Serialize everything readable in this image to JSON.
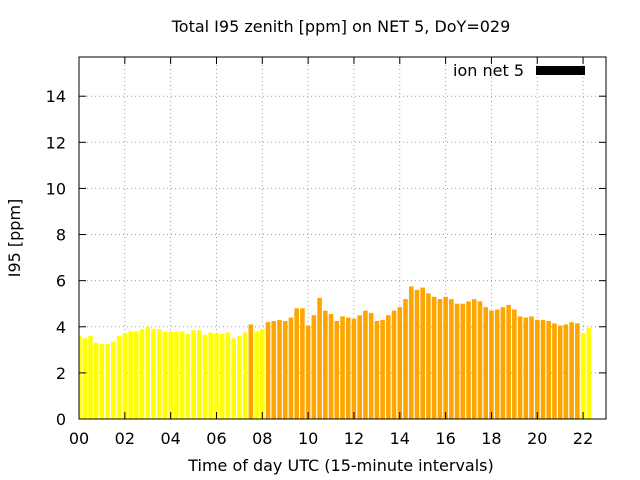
{
  "chart_data": {
    "type": "bar",
    "title": "Total I95 zenith [ppm] on NET 5, DoY=029",
    "xlabel": "Time of day UTC (15-minute intervals)",
    "ylabel": "I95 [ppm]",
    "xlim": [
      0,
      23
    ],
    "ylim": [
      0,
      15.7
    ],
    "grid": true,
    "legend_position": "top-right",
    "x_ticks": [
      0,
      2,
      4,
      6,
      8,
      10,
      12,
      14,
      16,
      18,
      20,
      22
    ],
    "x_tick_labels": [
      "00",
      "02",
      "04",
      "06",
      "08",
      "10",
      "12",
      "14",
      "16",
      "18",
      "20",
      "22"
    ],
    "y_ticks": [
      0,
      2,
      4,
      6,
      8,
      10,
      12,
      14
    ],
    "y_tick_labels": [
      "0",
      "2",
      "4",
      "6",
      "8",
      "10",
      "12",
      "14"
    ],
    "interval_hours": 0.25,
    "bar_width_hours": 0.2,
    "colors": {
      "low": "#ffff00",
      "high": "#ffa500",
      "frame": "#000000",
      "grid": "#a0a0a0"
    },
    "series": [
      {
        "name": "ion net 5",
        "legend_color": "#000000",
        "values": [
          3.6,
          3.5,
          3.6,
          3.3,
          3.25,
          3.25,
          3.35,
          3.6,
          3.7,
          3.8,
          3.8,
          3.9,
          4.0,
          3.9,
          3.9,
          3.8,
          3.8,
          3.8,
          3.8,
          3.7,
          3.85,
          3.85,
          3.65,
          3.75,
          3.7,
          3.7,
          3.75,
          3.5,
          3.6,
          3.75,
          4.1,
          3.8,
          3.9,
          4.2,
          4.25,
          4.3,
          4.25,
          4.4,
          4.8,
          4.8,
          4.05,
          4.5,
          5.25,
          4.7,
          4.55,
          4.25,
          4.45,
          4.4,
          4.35,
          4.5,
          4.7,
          4.6,
          4.25,
          4.3,
          4.5,
          4.7,
          4.85,
          5.2,
          5.75,
          5.6,
          5.7,
          5.45,
          5.3,
          5.2,
          5.3,
          5.2,
          5.0,
          5.0,
          5.1,
          5.2,
          5.1,
          4.85,
          4.7,
          4.75,
          4.85,
          4.95,
          4.75,
          4.45,
          4.4,
          4.45,
          4.3,
          4.3,
          4.25,
          4.15,
          4.05,
          4.1,
          4.2,
          4.15,
          3.7,
          3.95
        ],
        "colors": [
          "low",
          "low",
          "low",
          "low",
          "low",
          "low",
          "low",
          "low",
          "low",
          "low",
          "low",
          "low",
          "low",
          "low",
          "low",
          "low",
          "low",
          "low",
          "low",
          "low",
          "low",
          "low",
          "low",
          "low",
          "low",
          "low",
          "low",
          "low",
          "low",
          "low",
          "high",
          "low",
          "low",
          "high",
          "high",
          "high",
          "high",
          "high",
          "high",
          "high",
          "high",
          "high",
          "high",
          "high",
          "high",
          "high",
          "high",
          "high",
          "high",
          "high",
          "high",
          "high",
          "high",
          "high",
          "high",
          "high",
          "high",
          "high",
          "high",
          "high",
          "high",
          "high",
          "high",
          "high",
          "high",
          "high",
          "high",
          "high",
          "high",
          "high",
          "high",
          "high",
          "high",
          "high",
          "high",
          "high",
          "high",
          "high",
          "high",
          "high",
          "high",
          "high",
          "high",
          "high",
          "high",
          "high",
          "high",
          "high",
          "low",
          "low"
        ]
      }
    ]
  }
}
